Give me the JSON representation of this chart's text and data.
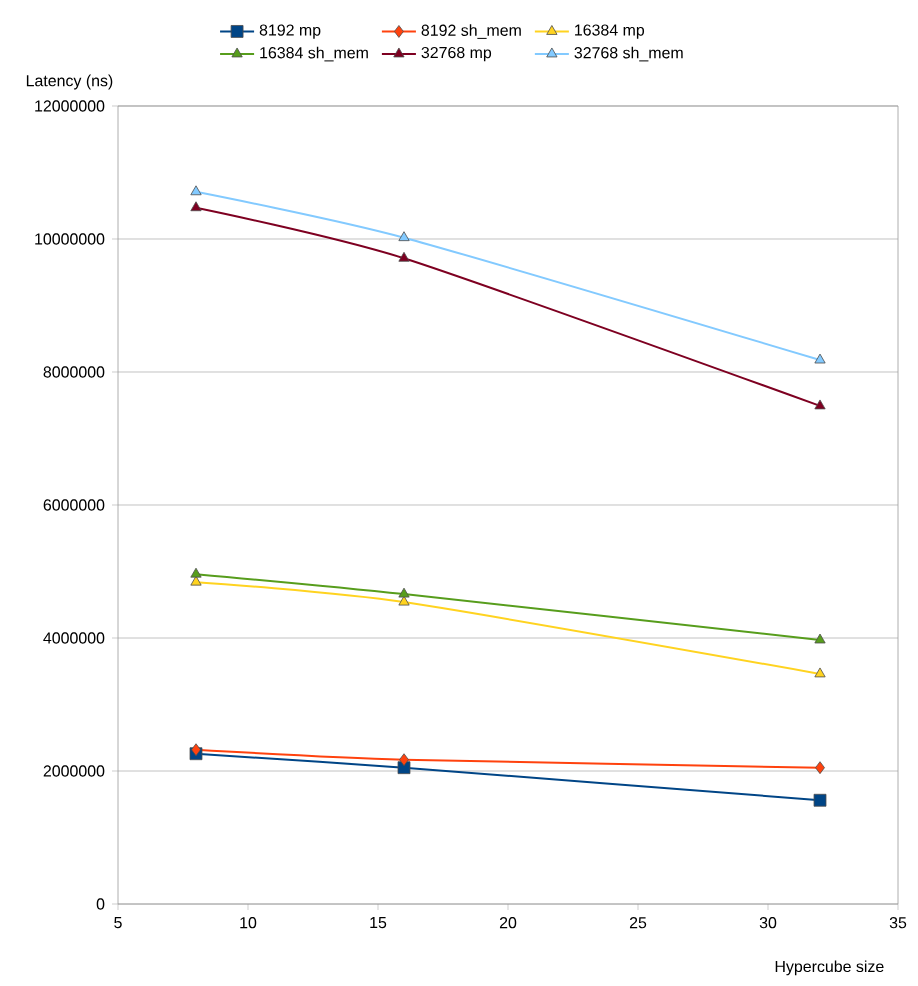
{
  "chart_data": {
    "type": "line",
    "xlabel": "Hypercube size",
    "ylabel": "Latency (ns)",
    "x": [
      8,
      16,
      32
    ],
    "series": [
      {
        "name": "8192 mp",
        "color": "#004586",
        "marker": "square",
        "values": [
          2260000,
          2050000,
          1560000
        ]
      },
      {
        "name": "8192 sh_mem",
        "color": "#ff420e",
        "marker": "diamond",
        "values": [
          2320000,
          2170000,
          2050000
        ]
      },
      {
        "name": "16384 mp",
        "color": "#ffd320",
        "marker": "triangle",
        "values": [
          4840000,
          4540000,
          3460000
        ]
      },
      {
        "name": "16384 sh_mem",
        "color": "#579d1c",
        "marker": "triangle",
        "values": [
          4960000,
          4660000,
          3970000
        ]
      },
      {
        "name": "32768 mp",
        "color": "#7e0021",
        "marker": "triangle",
        "values": [
          10470000,
          9710000,
          7490000
        ]
      },
      {
        "name": "32768 sh_mem",
        "color": "#83caff",
        "marker": "triangle",
        "values": [
          10710000,
          10020000,
          8180000
        ]
      }
    ],
    "xlim": [
      5,
      35
    ],
    "xticks": [
      5,
      10,
      15,
      20,
      25,
      30,
      35
    ],
    "ylim": [
      0,
      12000000
    ],
    "yticks": [
      0,
      2000000,
      4000000,
      6000000,
      8000000,
      10000000,
      12000000
    ],
    "grid": "y",
    "legend": "top",
    "line_style": "solid"
  }
}
